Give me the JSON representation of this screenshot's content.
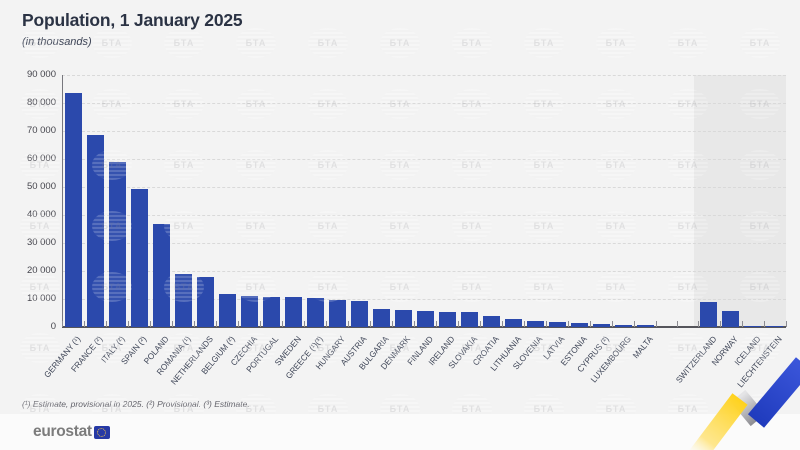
{
  "chart_data": {
    "type": "bar",
    "title": "Population, 1 January 2025",
    "subtitle": "(in thousands)",
    "unit": "thousands",
    "categories": [
      "GERMANY (¹)",
      "FRANCE (²)",
      "ITALY (²)",
      "SPAIN (²)",
      "POLAND",
      "ROMANIA (¹)",
      "NETHERLANDS",
      "BELGIUM (²)",
      "CZECHIA",
      "PORTUGAL",
      "SWEDEN",
      "GREECE (¹)(³)",
      "HUNGARY",
      "AUSTRIA",
      "BULGARIA",
      "DENMARK",
      "FINLAND",
      "IRELAND",
      "SLOVAKIA",
      "CROATIA",
      "LITHUANIA",
      "SLOVENIA",
      "LATVIA",
      "ESTONIA",
      "CYPRUS (²)",
      "LUXEMBOURG",
      "MALTA",
      "SWITZERLAND",
      "NORWAY",
      "ICELAND",
      "LIECHTENSTEIN"
    ],
    "values": [
      83577,
      68606,
      58934,
      49153,
      36621,
      19055,
      17993,
      11863,
      10909,
      10750,
      10588,
      10401,
      9539,
      9198,
      6437,
      5993,
      5635,
      5440,
      5411,
      3860,
      2886,
      2131,
      1854,
      1369,
      978,
      682,
      574,
      9049,
      5594,
      389,
      40
    ],
    "groups": {
      "eu_count": 27,
      "efta_count": 4
    },
    "ylim": [
      0,
      90000
    ],
    "ytick_step": 10000,
    "ytick_labels": [
      "0",
      "10 000",
      "20 000",
      "30 000",
      "40 000",
      "50 000",
      "60 000",
      "70 000",
      "80 000",
      "90 000"
    ],
    "grid": "horizontal-dashed",
    "legend": "none",
    "footnote": "(¹) Estimate, provisional in 2025. (²) Provisional. (³) Estimate."
  },
  "footer": {
    "logo_text": "eurostat"
  },
  "watermark": {
    "text": "БТА"
  },
  "colors": {
    "bar": "#2b49ac",
    "panel_background": "#f3f3f3",
    "efta_zone": "#e8e8e8",
    "title_text": "#2b3344",
    "ribbon_yellow": "#ffd21c",
    "ribbon_blue": "#2441c6",
    "flag_blue": "#2639a5",
    "star_gold": "#f7c948"
  }
}
